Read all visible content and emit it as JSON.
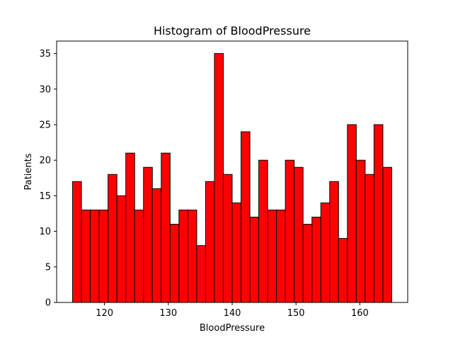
{
  "chart_data": {
    "type": "bar",
    "title": "Histogram of BloodPressure",
    "xlabel": "BloodPressure",
    "ylabel": "Patients",
    "xlim": [
      112.5,
      167.5
    ],
    "ylim": [
      0,
      36.75
    ],
    "bar_color": "#ff0000",
    "edge_color": "#000000",
    "bin_start": 115,
    "bin_width": 1.3889,
    "counts": [
      17,
      13,
      13,
      13,
      18,
      15,
      21,
      13,
      19,
      16,
      21,
      11,
      13,
      13,
      8,
      17,
      35,
      18,
      14,
      24,
      12,
      20,
      13,
      13,
      20,
      19,
      11,
      12,
      14,
      17,
      9,
      25,
      20,
      18,
      25,
      19
    ],
    "xticks": [
      120,
      130,
      140,
      150,
      160
    ],
    "yticks": [
      0,
      5,
      10,
      15,
      20,
      25,
      30,
      35
    ],
    "grid": false,
    "legend": "none"
  }
}
